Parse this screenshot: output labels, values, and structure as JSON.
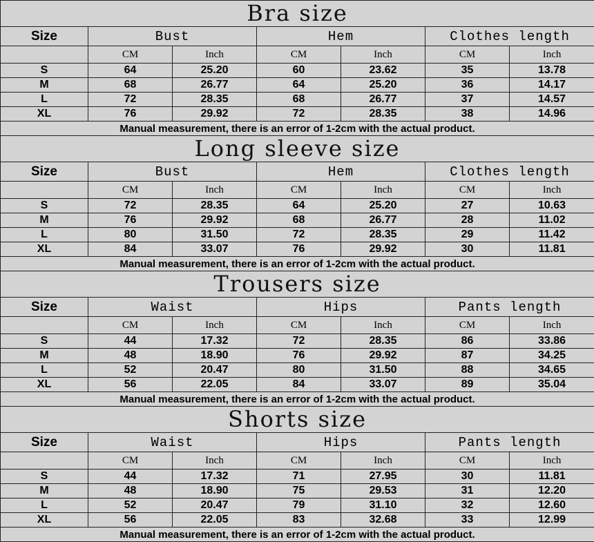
{
  "unit_cm": "CM",
  "unit_inch": "Inch",
  "size_label": "Size",
  "note": "Manual measurement, there is an error of 1-2cm with the actual product.",
  "sections": [
    {
      "title": "Bra size",
      "groups": [
        "Bust",
        "Hem",
        "Clothes length"
      ],
      "rows": [
        [
          "S",
          "64",
          "25.20",
          "60",
          "23.62",
          "35",
          "13.78"
        ],
        [
          "M",
          "68",
          "26.77",
          "64",
          "25.20",
          "36",
          "14.17"
        ],
        [
          "L",
          "72",
          "28.35",
          "68",
          "26.77",
          "37",
          "14.57"
        ],
        [
          "XL",
          "76",
          "29.92",
          "72",
          "28.35",
          "38",
          "14.96"
        ]
      ]
    },
    {
      "title": "Long sleeve size",
      "groups": [
        "Bust",
        "Hem",
        "Clothes length"
      ],
      "rows": [
        [
          "S",
          "72",
          "28.35",
          "64",
          "25.20",
          "27",
          "10.63"
        ],
        [
          "M",
          "76",
          "29.92",
          "68",
          "26.77",
          "28",
          "11.02"
        ],
        [
          "L",
          "80",
          "31.50",
          "72",
          "28.35",
          "29",
          "11.42"
        ],
        [
          "XL",
          "84",
          "33.07",
          "76",
          "29.92",
          "30",
          "11.81"
        ]
      ]
    },
    {
      "title": "Trousers size",
      "groups": [
        "Waist",
        "Hips",
        "Pants length"
      ],
      "rows": [
        [
          "S",
          "44",
          "17.32",
          "72",
          "28.35",
          "86",
          "33.86"
        ],
        [
          "M",
          "48",
          "18.90",
          "76",
          "29.92",
          "87",
          "34.25"
        ],
        [
          "L",
          "52",
          "20.47",
          "80",
          "31.50",
          "88",
          "34.65"
        ],
        [
          "XL",
          "56",
          "22.05",
          "84",
          "33.07",
          "89",
          "35.04"
        ]
      ]
    },
    {
      "title": "Shorts size",
      "groups": [
        "Waist",
        "Hips",
        "Pants length"
      ],
      "rows": [
        [
          "S",
          "44",
          "17.32",
          "71",
          "27.95",
          "30",
          "11.81"
        ],
        [
          "M",
          "48",
          "18.90",
          "75",
          "29.53",
          "31",
          "12.20"
        ],
        [
          "L",
          "52",
          "20.47",
          "79",
          "31.10",
          "32",
          "12.60"
        ],
        [
          "XL",
          "56",
          "22.05",
          "83",
          "32.68",
          "33",
          "12.99"
        ]
      ]
    }
  ]
}
